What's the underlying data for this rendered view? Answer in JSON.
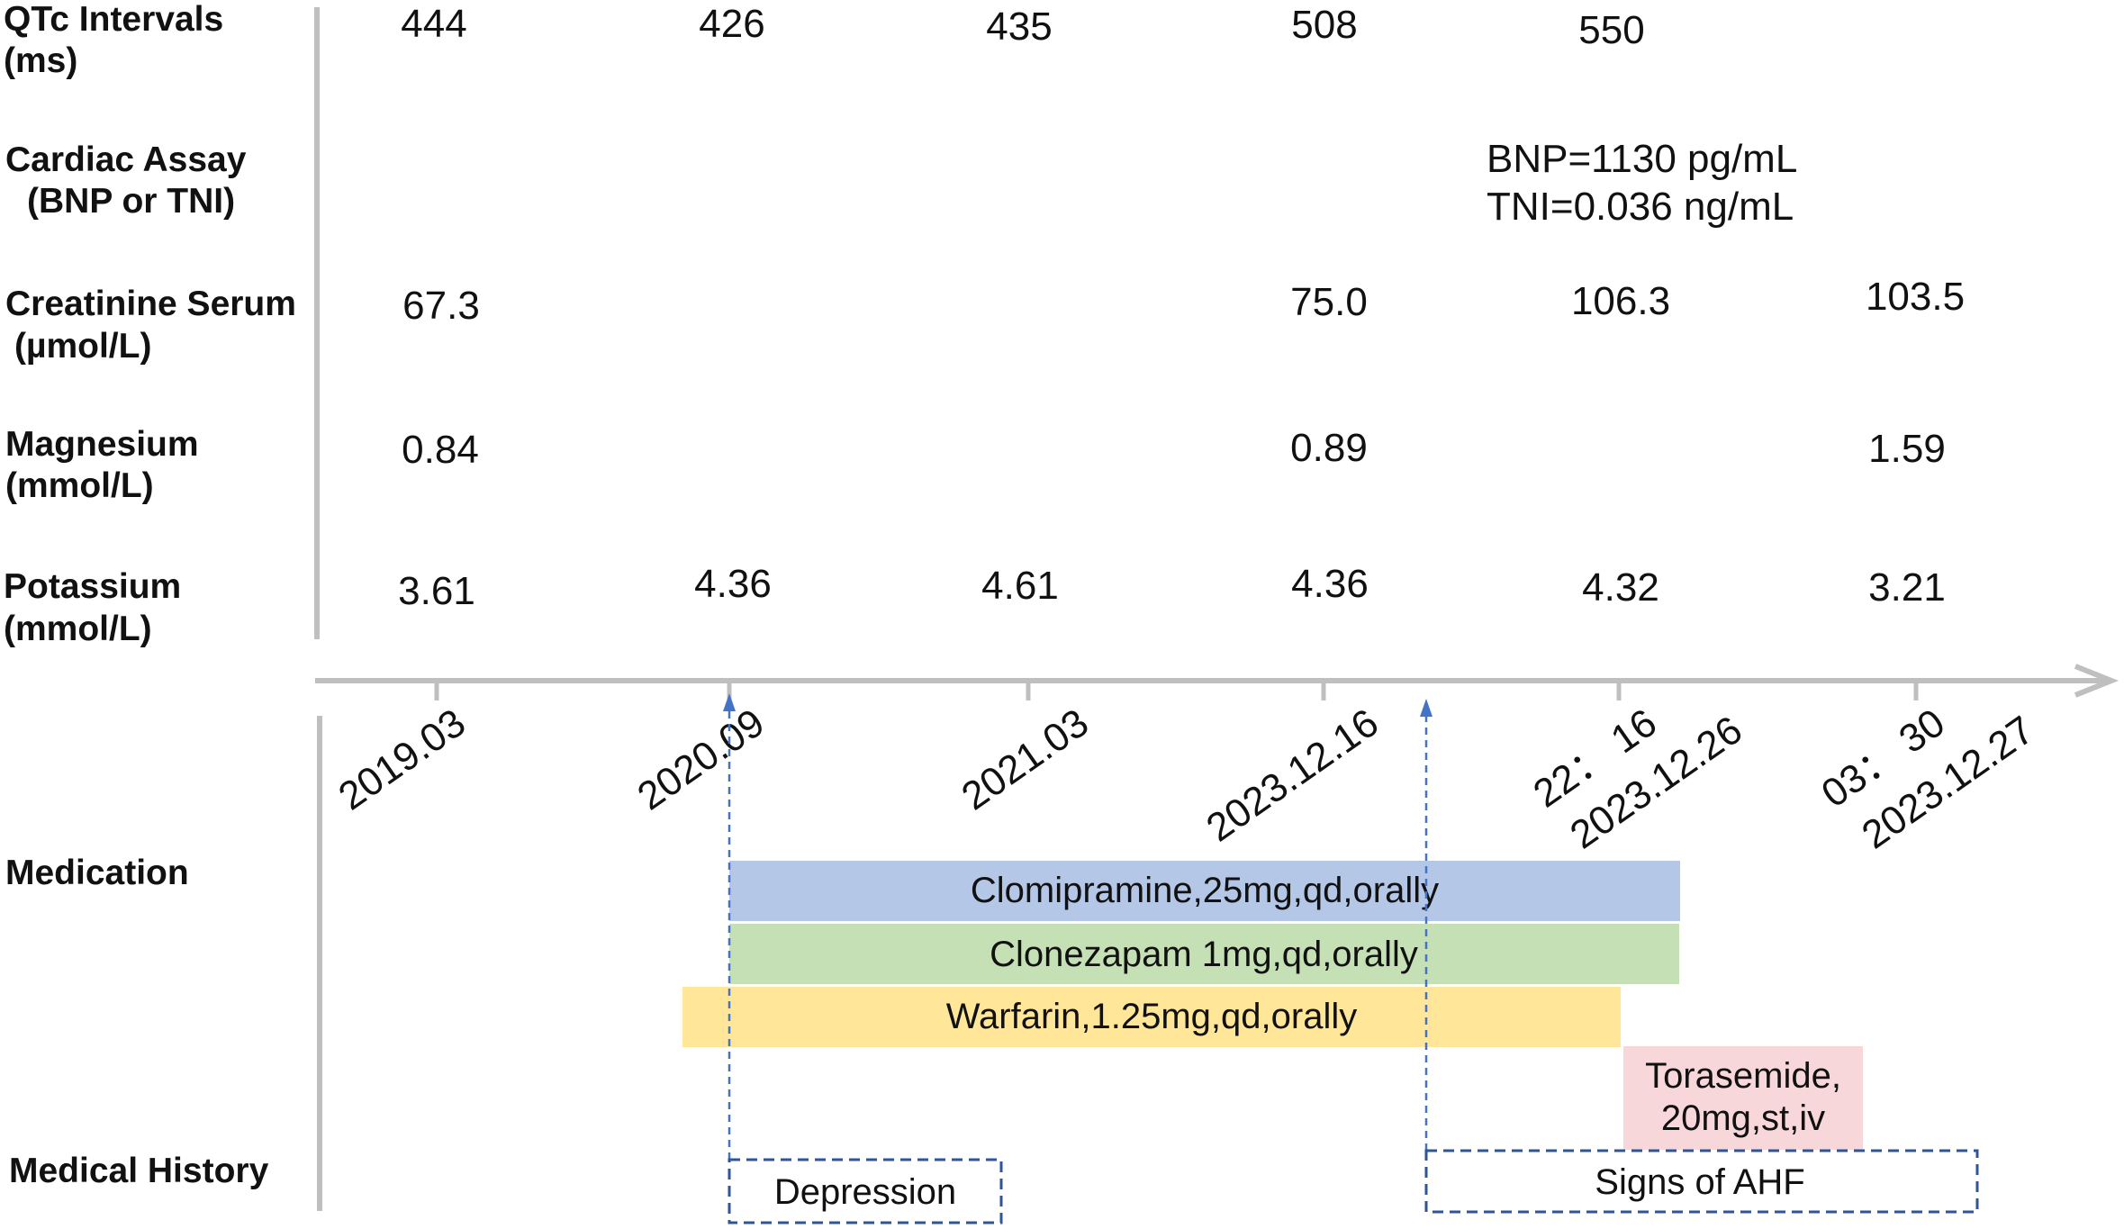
{
  "rows": {
    "qtc": {
      "label_l1": "QTc Intervals",
      "label_l2": "(ms)",
      "values": [
        "444",
        "426",
        "435",
        "508",
        "550"
      ]
    },
    "cardiac": {
      "label_l1": "Cardiac Assay",
      "label_l2": "(BNP or TNI)",
      "bnp": "BNP=1130 pg/mL",
      "tni": "TNI=0.036 ng/mL"
    },
    "creatinine": {
      "label_l1": "Creatinine Serum",
      "label_l2": "(µmol/L)",
      "values": [
        "67.3",
        "75.0",
        "106.3",
        "103.5"
      ]
    },
    "magnesium": {
      "label_l1": "Magnesium",
      "label_l2": "(mmol/L)",
      "values": [
        "0.84",
        "0.89",
        "1.59"
      ]
    },
    "potassium": {
      "label_l1": "Potassium",
      "label_l2": "(mmol/L)",
      "values": [
        "3.61",
        "4.36",
        "4.61",
        "4.36",
        "4.32",
        "3.21"
      ]
    }
  },
  "timeline": {
    "ticks": [
      {
        "line1": "2019.03"
      },
      {
        "line1": "2020.09"
      },
      {
        "line1": "2021.03"
      },
      {
        "line1": "2023.12.16"
      },
      {
        "line1": "22： 16",
        "line2": "2023.12.26"
      },
      {
        "line1": "03： 30",
        "line2": "2023.12.27"
      }
    ]
  },
  "sections": {
    "medication": "Medication",
    "history": "Medical History"
  },
  "medications": [
    {
      "label": "Clomipramine,25mg,qd,orally",
      "color": "#b4c7e7"
    },
    {
      "label": "Clonezapam 1mg,qd,orally",
      "color": "#c5e0b4"
    },
    {
      "label": "Warfarin,1.25mg,qd,orally",
      "color": "#ffe699"
    },
    {
      "label_l1": "Torasemide,",
      "label_l2": "20mg,st,iv",
      "color": "#f8d7da"
    }
  ],
  "history": [
    {
      "label": "Depression"
    },
    {
      "label": "Signs of AHF"
    }
  ],
  "colors": {
    "axis": "#bfbfbf",
    "dashed": "#2f5597",
    "arrow": "#4472c4"
  }
}
